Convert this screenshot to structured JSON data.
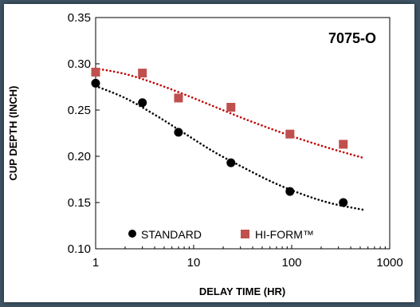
{
  "chart_data": {
    "type": "scatter",
    "title": "7075-O",
    "xlabel": "DELAY TIME (HR)",
    "ylabel": "CUP DEPTH (INCH)",
    "xscale": "log",
    "xlim": [
      1,
      1000
    ],
    "ylim": [
      0.1,
      0.35
    ],
    "xticks": [
      "1",
      "10",
      "100",
      "1000"
    ],
    "yticks": [
      "0.10",
      "0.15",
      "0.20",
      "0.25",
      "0.30",
      "0.35"
    ],
    "grid": false,
    "legend_position": "bottom-left",
    "series": [
      {
        "name": "STANDARD",
        "marker": "circle",
        "color": "#000000",
        "x": [
          1,
          3,
          7,
          24,
          96,
          336
        ],
        "y": [
          0.279,
          0.258,
          0.226,
          0.193,
          0.162,
          0.15
        ],
        "trendline": {
          "style": "dotted",
          "x": [
            1,
            2,
            4,
            8,
            16,
            32,
            64,
            128,
            256,
            550
          ],
          "y": [
            0.276,
            0.263,
            0.245,
            0.225,
            0.205,
            0.188,
            0.172,
            0.159,
            0.149,
            0.142
          ]
        }
      },
      {
        "name": "HI-FORM™",
        "marker": "square",
        "color": "#c0504d",
        "x": [
          1,
          3,
          7,
          24,
          96,
          336
        ],
        "y": [
          0.291,
          0.29,
          0.263,
          0.253,
          0.224,
          0.213
        ],
        "trendline": {
          "style": "dotted",
          "color": "#c00000",
          "x": [
            1,
            2,
            4,
            8,
            16,
            32,
            64,
            128,
            256,
            550
          ],
          "y": [
            0.295,
            0.289,
            0.279,
            0.267,
            0.254,
            0.241,
            0.229,
            0.218,
            0.208,
            0.198
          ]
        }
      }
    ]
  }
}
